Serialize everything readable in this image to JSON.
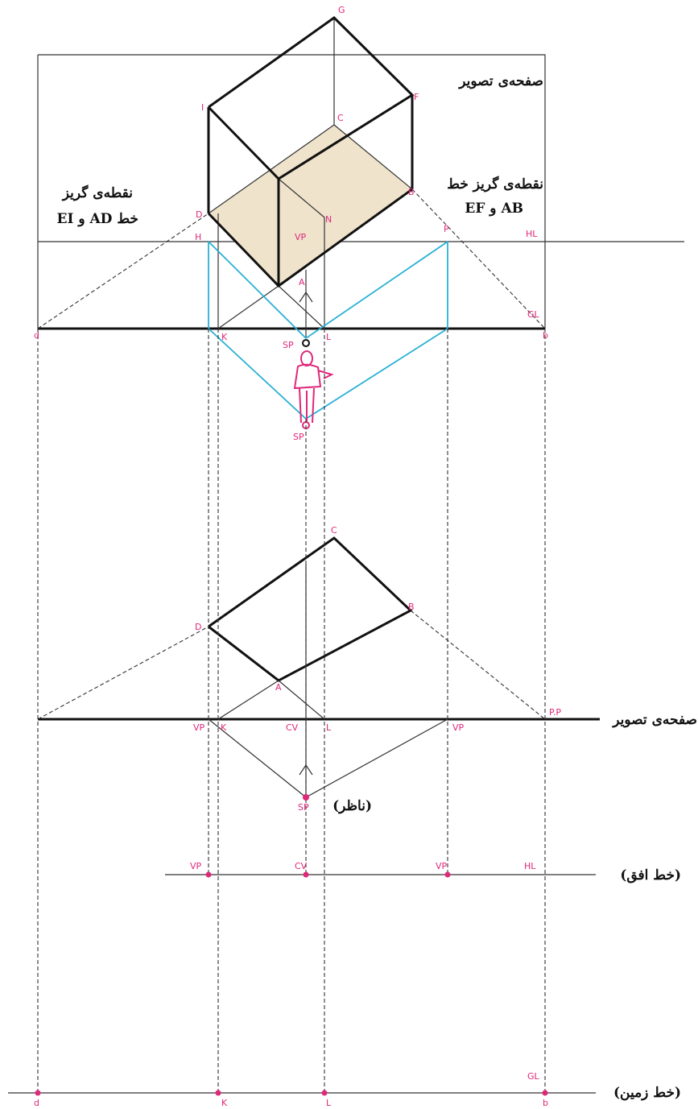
{
  "titles": {
    "picture_plane": "صفحه‌ی تصویر",
    "vp_right_1": "نقطه‌ی گریز خط",
    "vp_right_2": "AB و EF",
    "vp_left_1": "نقطه‌ی گریز",
    "vp_left_2": "خط AD و EI",
    "picture_plane_side": "صفحه‌ی تصویر",
    "observer": "(ناظر)",
    "horizon": "(خط افق)",
    "ground": "(خط زمین)"
  },
  "points": [
    "G",
    "F",
    "I",
    "C",
    "B",
    "D",
    "N",
    "VP",
    "H",
    "P",
    "HL",
    "GL",
    "A",
    "K",
    "SP",
    "L",
    "SP",
    "d",
    "b",
    "C",
    "B",
    "D",
    "A",
    "VP",
    "K",
    "CV",
    "L",
    "VP",
    "P.P",
    "SP",
    "VP",
    "CV",
    "VP",
    "HL",
    "GL",
    "d",
    "K",
    "L",
    "b"
  ]
}
